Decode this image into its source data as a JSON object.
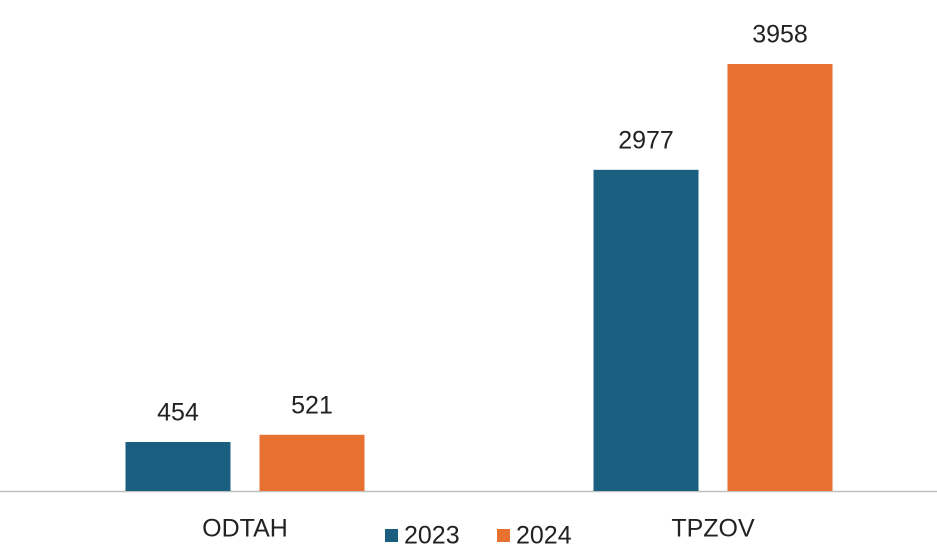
{
  "chart_data": {
    "type": "bar",
    "categories": [
      "ODTAH",
      "TPZOV"
    ],
    "series": [
      {
        "name": "2023",
        "color": "#1a5f80",
        "values": [
          454,
          2977
        ]
      },
      {
        "name": "2024",
        "color": "#e87030",
        "values": [
          521,
          3958
        ]
      }
    ],
    "legend": "bottom"
  }
}
